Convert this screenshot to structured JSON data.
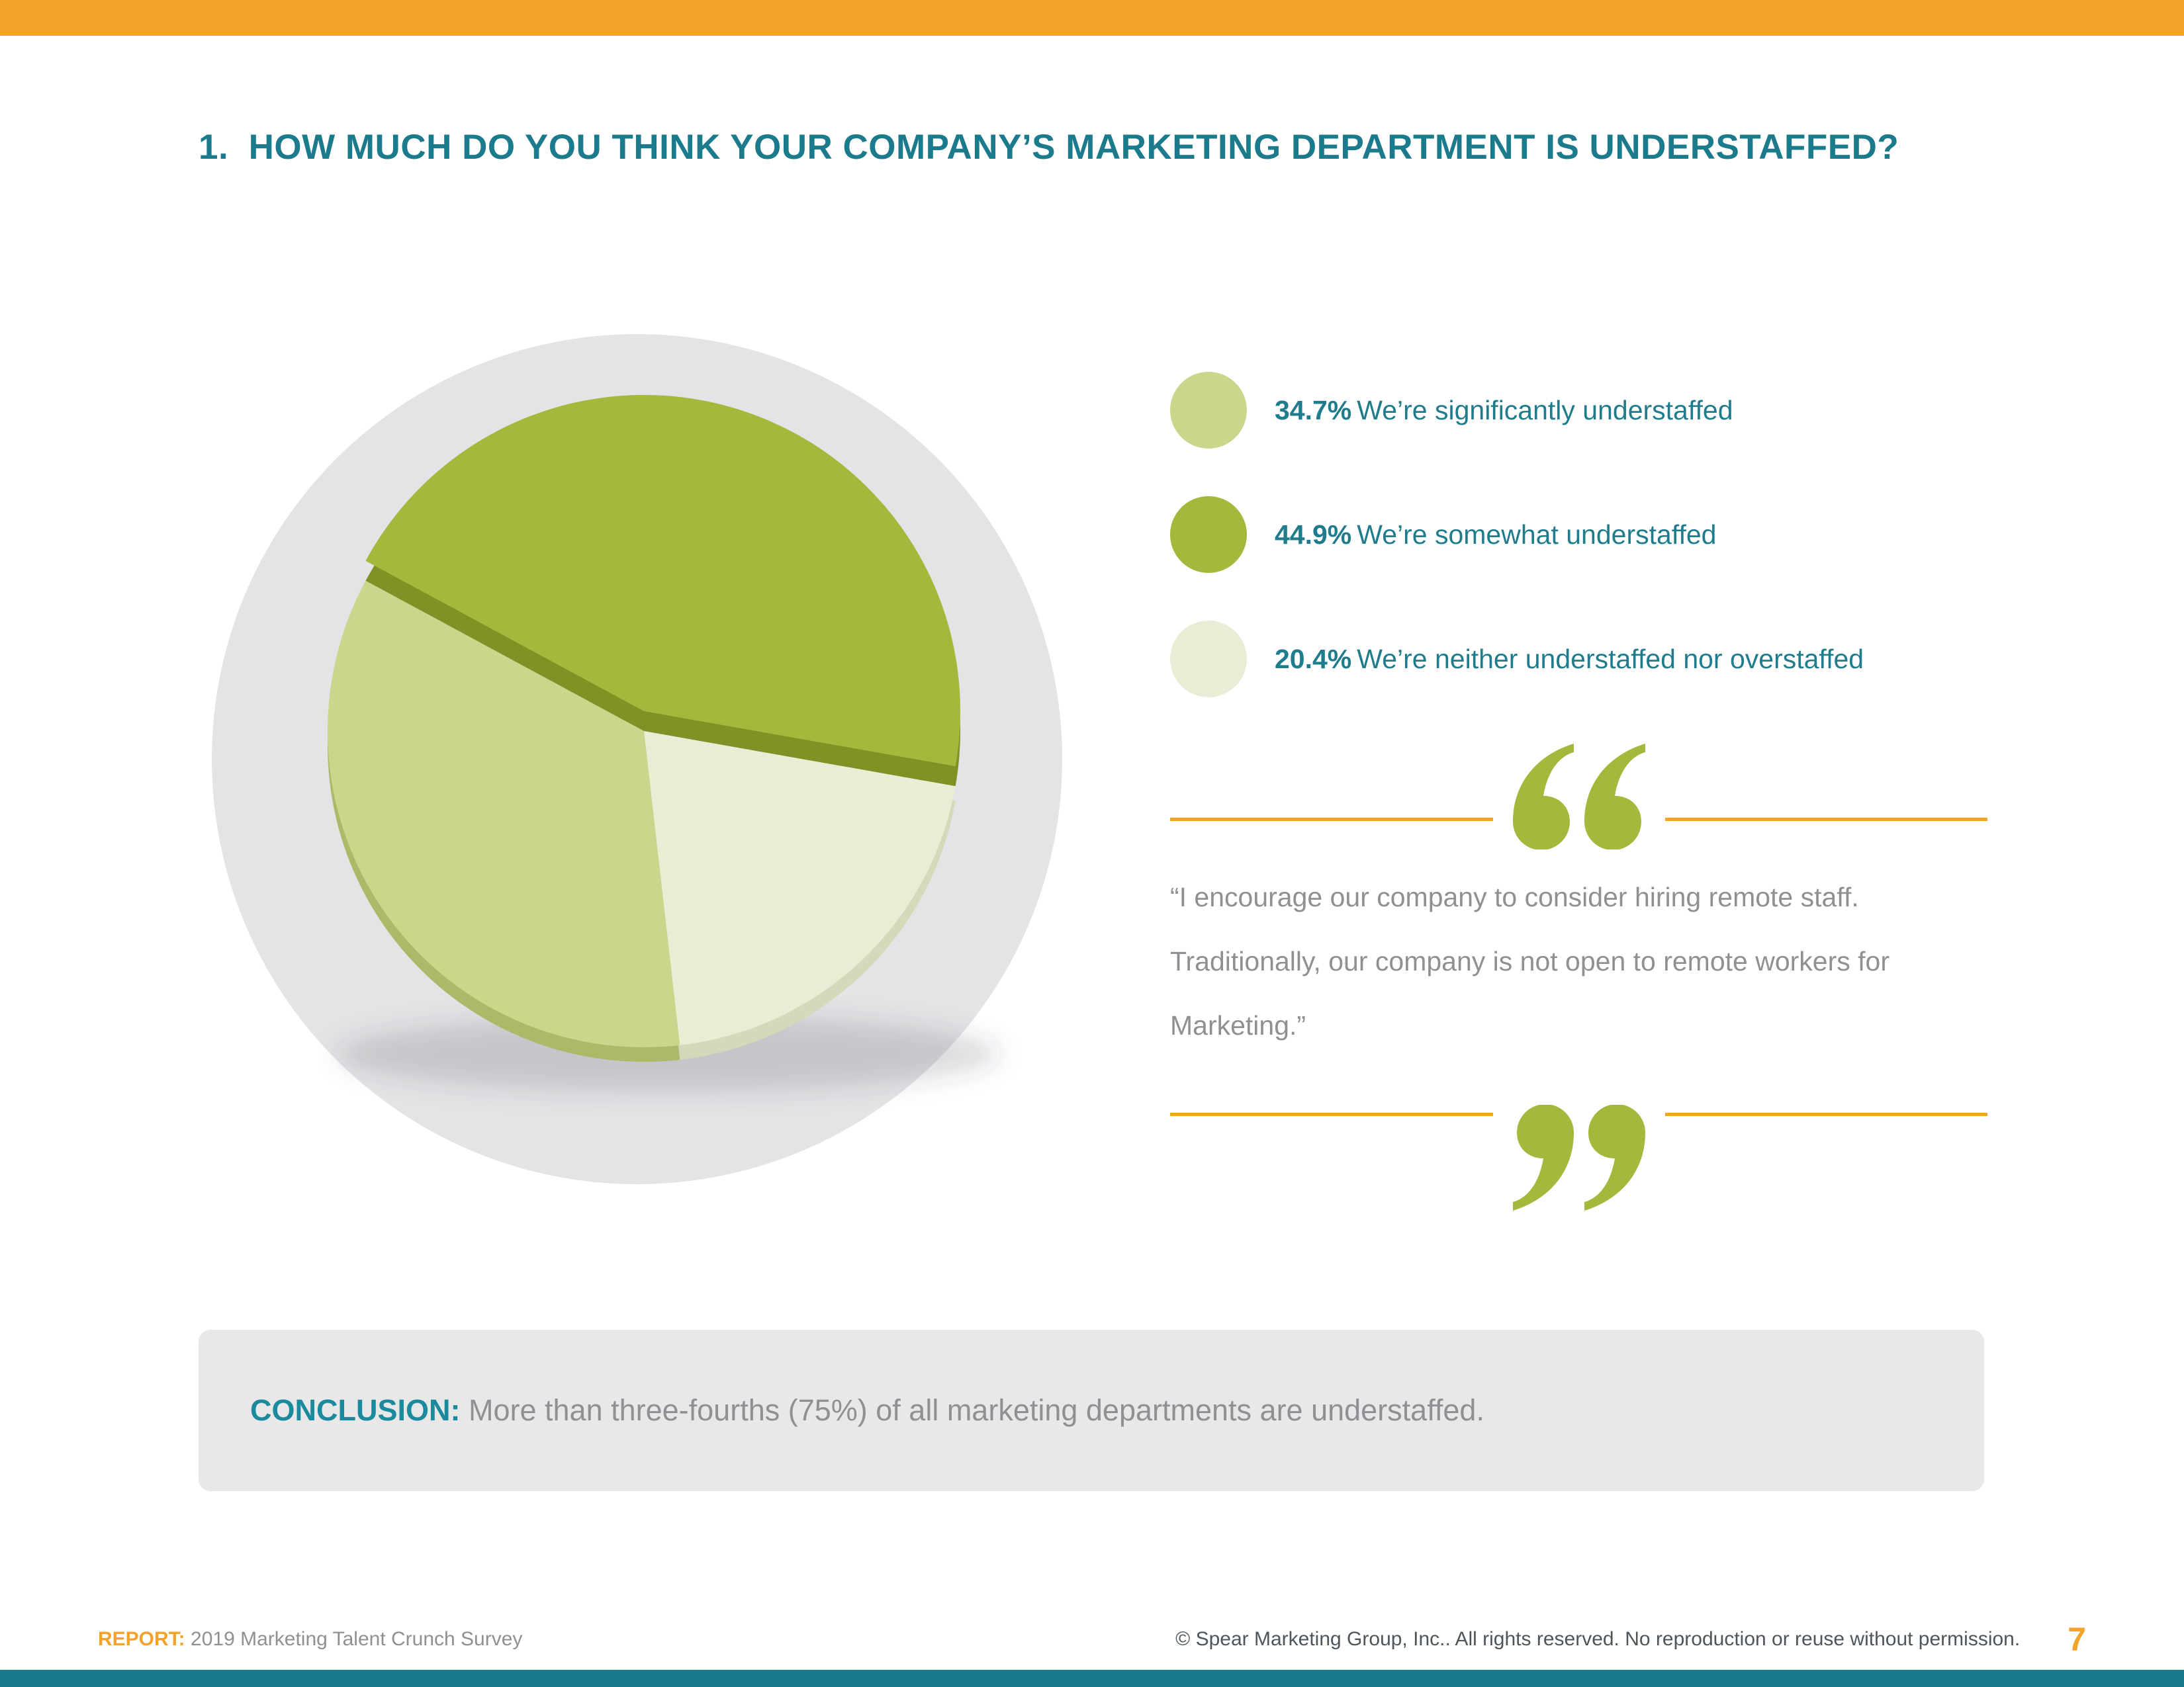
{
  "page": {
    "title": "1.  HOW MUCH DO YOU THINK YOUR COMPANY’S MARKETING DEPARTMENT IS UNDERSTAFFED?"
  },
  "colors": {
    "teal": "#1B7B8C",
    "orange": "#F3A32A",
    "olive": "#A3B93B",
    "light_olive": "#CBD58C",
    "pale_olive": "#E9EDD6",
    "backdrop_gray": "#E4E4E7",
    "quote_text_gray": "#8F9094"
  },
  "chart_data": {
    "type": "pie",
    "style": "3d-offset",
    "start_angle_deg": 151.6,
    "direction": "clockwise",
    "slices": [
      {
        "label": "We’re somewhat understaffed",
        "value": 44.9,
        "color": "#A3B93B",
        "rim": "#7E9226",
        "raised": true
      },
      {
        "label": "We’re neither understaffed nor overstaffed",
        "value": 20.4,
        "color": "#E9EDD6",
        "rim": "#D3D9B9",
        "raised": false
      },
      {
        "label": "We’re significantly understaffed",
        "value": 34.7,
        "color": "#CBD58C",
        "rim": "#ABB968",
        "raised": false
      }
    ]
  },
  "legend": {
    "items": [
      {
        "pct": "34.7%",
        "label": "We’re significantly understaffed",
        "color": "#CBD58C"
      },
      {
        "pct": "44.9%",
        "label": "We’re somewhat understaffed",
        "color": "#A3B93B"
      },
      {
        "pct": "20.4%",
        "label": "We’re neither understaffed nor overstaffed",
        "color": "#E9EDD6"
      }
    ]
  },
  "quote": {
    "lines": [
      "“I encourage our company to consider hiring remote staff.",
      "Traditionally, our company is not open to remote workers for",
      "Marketing.”"
    ]
  },
  "conclusion": {
    "label": "CONCLUSION:",
    "text": " More than three-fourths (75%) of all marketing departments are understaffed."
  },
  "footer": {
    "report_label": "REPORT:",
    "report_text": " 2019 Marketing Talent Crunch Survey",
    "copyright": "© Spear Marketing Group, Inc.. All rights reserved. No reproduction or reuse without permission.",
    "page_number": "7"
  }
}
